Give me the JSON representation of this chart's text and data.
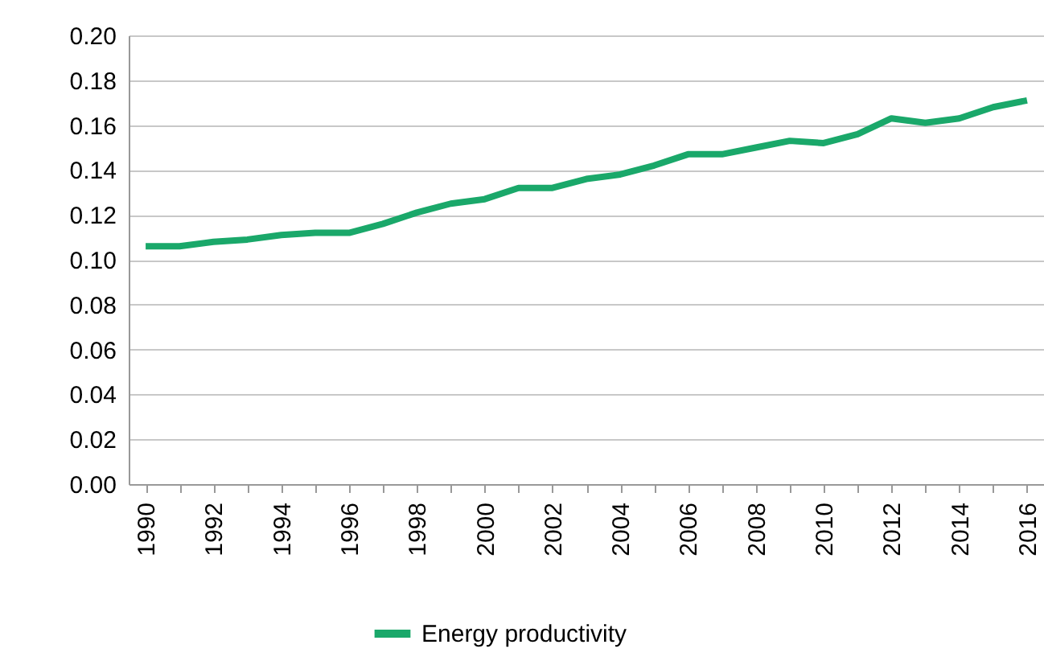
{
  "chart_data": {
    "type": "line",
    "categories": [
      "1990",
      null,
      "1992",
      null,
      "1994",
      null,
      "1996",
      null,
      "1998",
      null,
      "2000",
      null,
      "2002",
      null,
      "2004",
      null,
      "2006",
      null,
      "2008",
      null,
      "2010",
      null,
      "2012",
      null,
      "2014",
      null,
      "2016"
    ],
    "series": [
      {
        "name": "Energy productivity",
        "color": "#1aa86a",
        "values": [
          0.106,
          0.106,
          0.108,
          0.109,
          0.111,
          0.112,
          0.112,
          0.116,
          0.121,
          0.125,
          0.127,
          0.132,
          0.132,
          0.136,
          0.138,
          0.142,
          0.147,
          0.147,
          0.15,
          0.153,
          0.152,
          0.156,
          0.163,
          0.161,
          0.163,
          0.168,
          0.171
        ]
      }
    ],
    "ylim": [
      0,
      0.2
    ],
    "yticks": [
      {
        "value": 0,
        "label": "0.00"
      },
      {
        "value": 0.02,
        "label": "0.02"
      },
      {
        "value": 0.04,
        "label": "0.04"
      },
      {
        "value": 0.06,
        "label": "0.06"
      },
      {
        "value": 0.08,
        "label": "0.08"
      },
      {
        "value": 0.1,
        "label": "0.10"
      },
      {
        "value": 0.12,
        "label": "0.12"
      },
      {
        "value": 0.14,
        "label": "0.14"
      },
      {
        "value": 0.16,
        "label": "0.16"
      },
      {
        "value": 0.18,
        "label": "0.18"
      },
      {
        "value": 0.2,
        "label": "0.20"
      }
    ],
    "grid": "y",
    "legend": "bottom",
    "marker": "none",
    "line_style": "solid"
  }
}
